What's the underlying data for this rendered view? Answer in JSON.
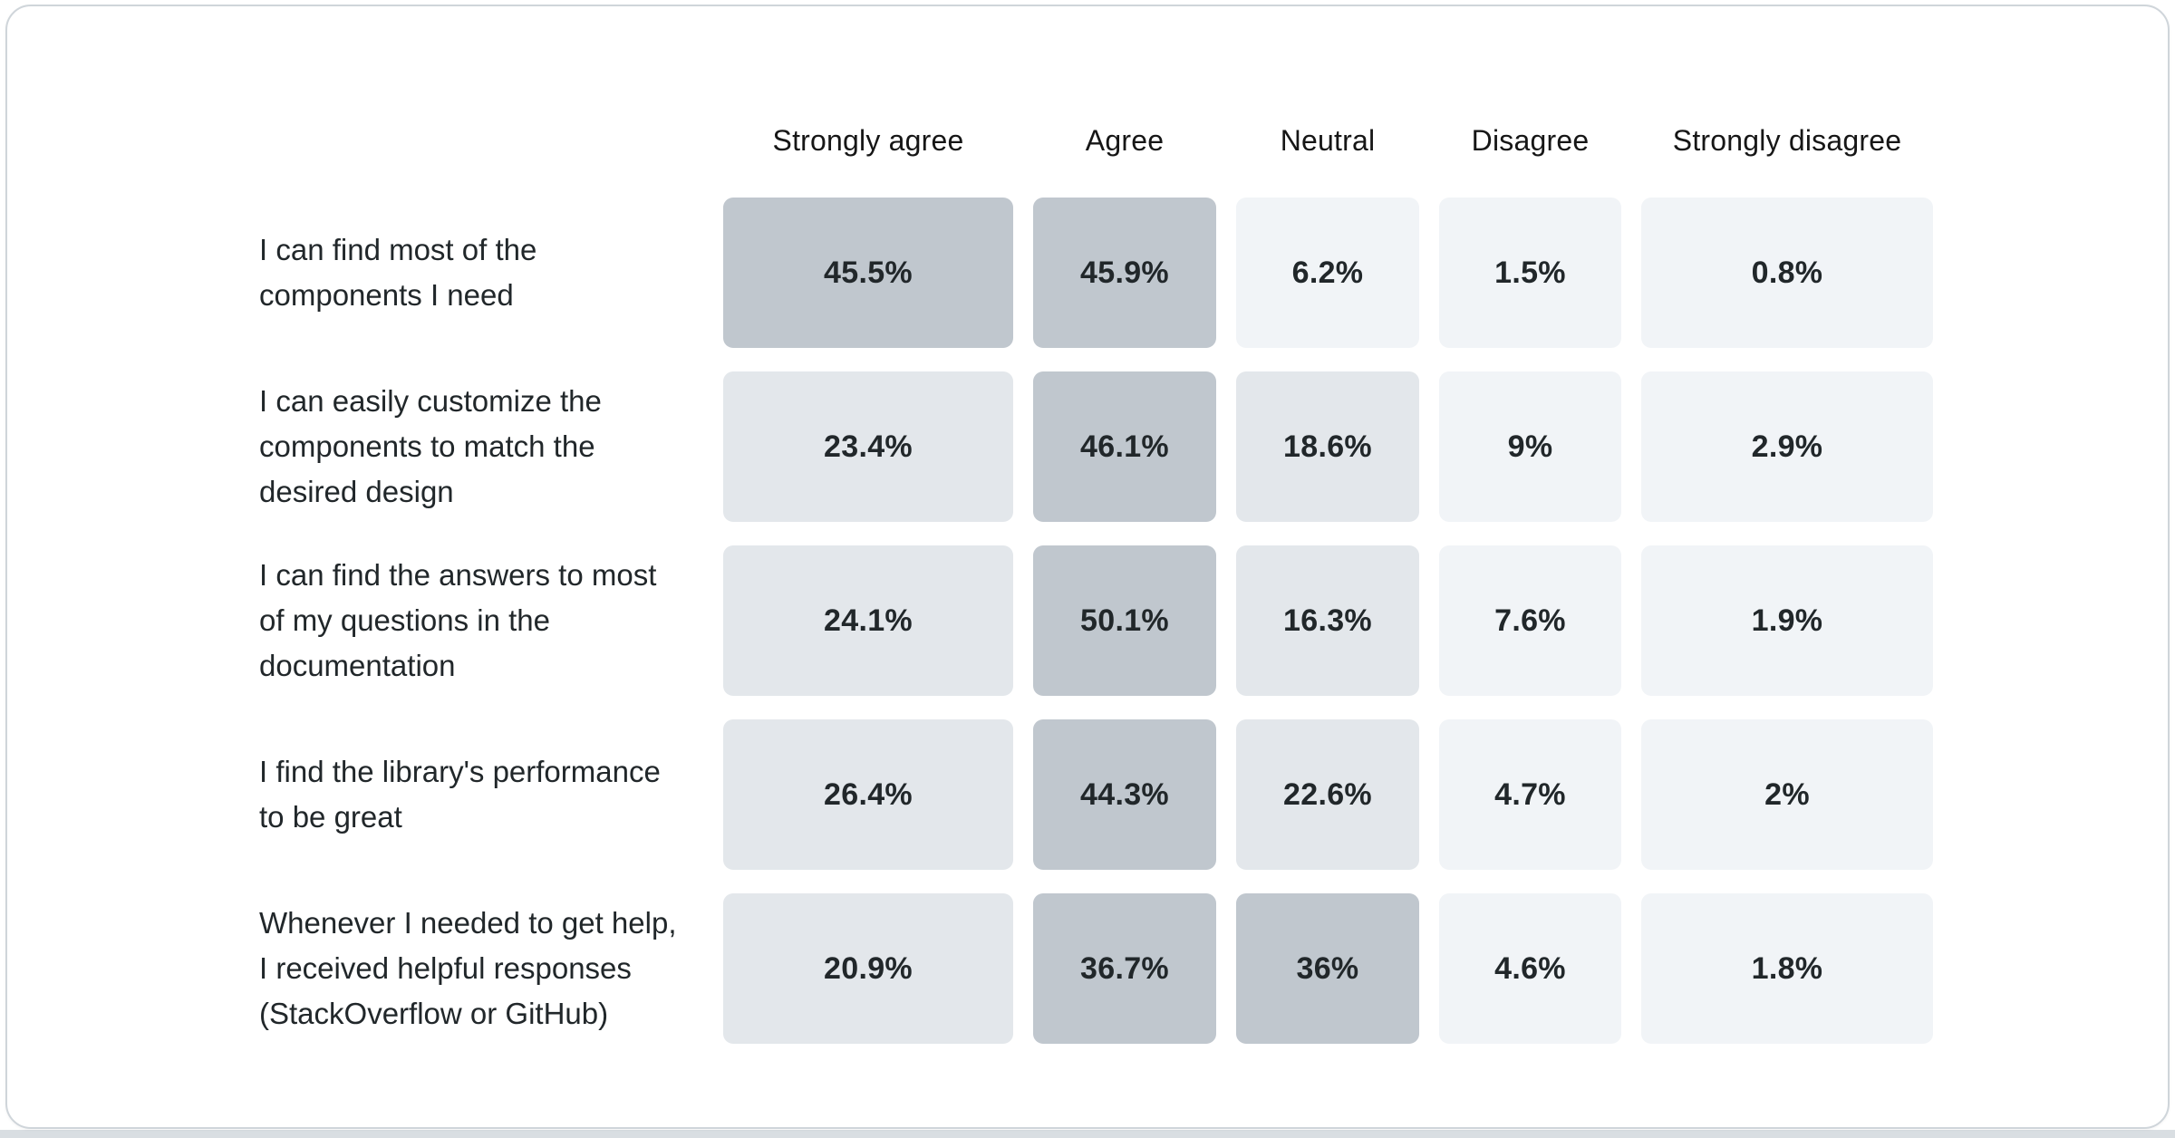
{
  "palette": {
    "dark": "#c0c7ce",
    "medium": "#e3e7eb",
    "light": "#f1f4f7",
    "card_background": "#ffffff",
    "page_strip": "#d9dee2",
    "card_border": "#cfd5da",
    "text": "#21272a",
    "header_text": "#161616"
  },
  "chart_data": {
    "type": "heatmap",
    "title": "",
    "legend_position": "none",
    "grid": false,
    "columns": [
      "Strongly agree",
      "Agree",
      "Neutral",
      "Disagree",
      "Strongly disagree"
    ],
    "rows": [
      {
        "label": "I can find most of the components I need",
        "values": [
          "45.5%",
          "45.9%",
          "6.2%",
          "1.5%",
          "0.8%"
        ],
        "numeric_values": [
          45.5,
          45.9,
          6.2,
          1.5,
          0.8
        ],
        "shades": [
          "dark",
          "dark",
          "light",
          "light",
          "light"
        ]
      },
      {
        "label": "I can easily customize the components to match the desired design",
        "values": [
          "23.4%",
          "46.1%",
          "18.6%",
          "9%",
          "2.9%"
        ],
        "numeric_values": [
          23.4,
          46.1,
          18.6,
          9,
          2.9
        ],
        "shades": [
          "medium",
          "dark",
          "medium",
          "light",
          "light"
        ]
      },
      {
        "label": "I can find the answers to most of my questions in the documentation",
        "values": [
          "24.1%",
          "50.1%",
          "16.3%",
          "7.6%",
          "1.9%"
        ],
        "numeric_values": [
          24.1,
          50.1,
          16.3,
          7.6,
          1.9
        ],
        "shades": [
          "medium",
          "dark",
          "medium",
          "light",
          "light"
        ]
      },
      {
        "label": "I find the library's performance to be great",
        "values": [
          "26.4%",
          "44.3%",
          "22.6%",
          "4.7%",
          "2%"
        ],
        "numeric_values": [
          26.4,
          44.3,
          22.6,
          4.7,
          2
        ],
        "shades": [
          "medium",
          "dark",
          "medium",
          "light",
          "light"
        ]
      },
      {
        "label": "Whenever I needed to get help, I received helpful responses (StackOverflow or GitHub)",
        "values": [
          "20.9%",
          "36.7%",
          "36%",
          "4.6%",
          "1.8%"
        ],
        "numeric_values": [
          20.9,
          36.7,
          36,
          4.6,
          1.8
        ],
        "shades": [
          "medium",
          "dark",
          "dark",
          "light",
          "light"
        ]
      }
    ]
  }
}
